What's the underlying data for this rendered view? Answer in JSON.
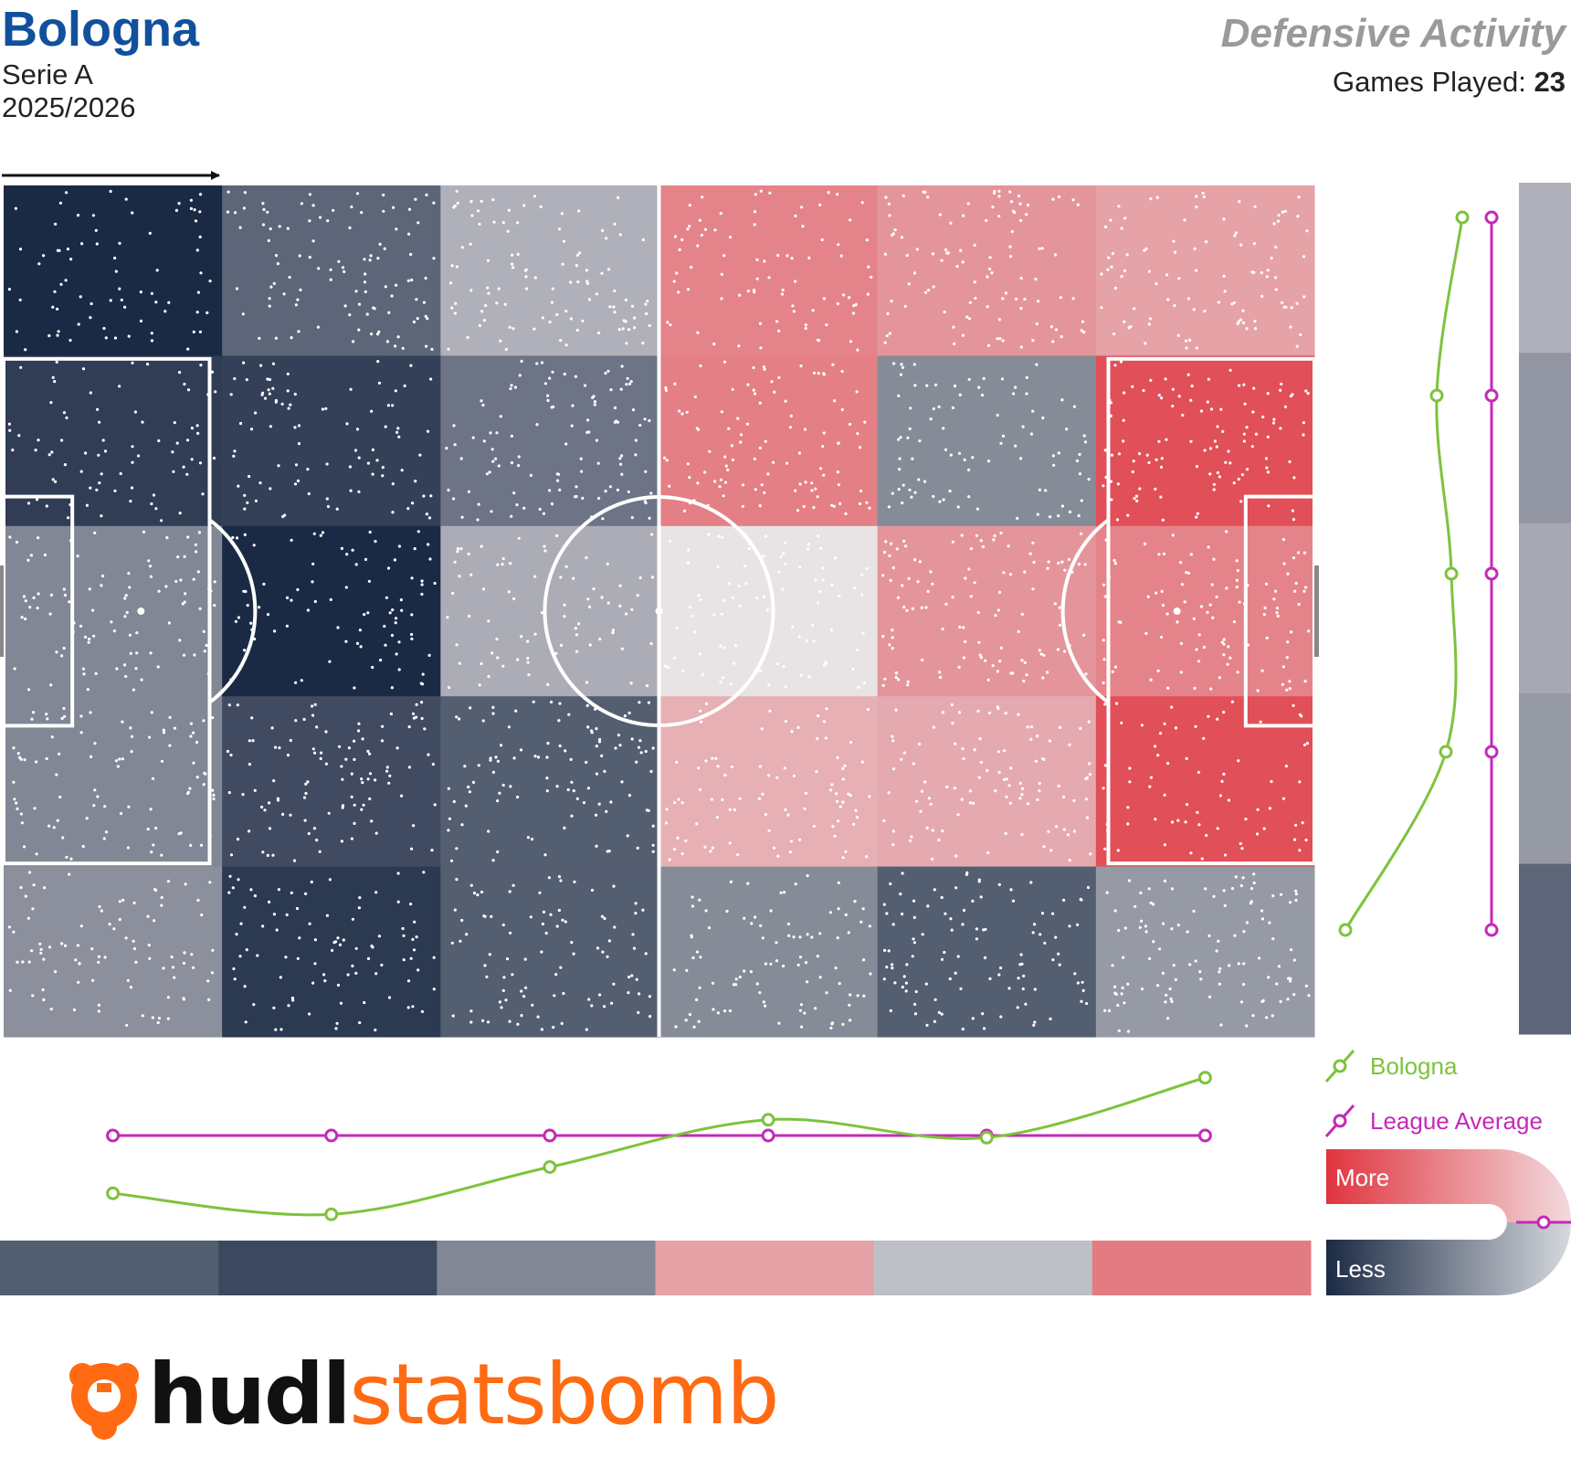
{
  "header": {
    "team": "Bologna",
    "competition": "Serie A",
    "season": "2025/2026",
    "report_title": "Defensive Activity",
    "games_label": "Games Played:",
    "games_value": "23"
  },
  "colors": {
    "team_line": "#7dc33c",
    "league_line": "#c42ab8",
    "more": "#e0353f",
    "less": "#1b2a44",
    "neutral": "#e8e4e6",
    "title_blue": "#12509d",
    "logo_orange": "#ff6a13"
  },
  "chart_data": {
    "type": "heatmap",
    "grid": {
      "columns": 6,
      "rows": 5
    },
    "attack_direction": "left-to-right",
    "scale": {
      "min": -1,
      "max": 1,
      "label_more": "More",
      "label_less": "Less"
    },
    "cells": [
      [
        -1.0,
        -0.68,
        -0.28,
        0.55,
        0.45,
        0.38
      ],
      [
        -0.9,
        -0.88,
        -0.6,
        0.58,
        -0.48,
        0.85
      ],
      [
        -0.5,
        -1.0,
        -0.3,
        0.0,
        0.45,
        0.55
      ],
      [
        -0.5,
        -0.82,
        -0.72,
        0.3,
        0.33,
        0.85
      ],
      [
        -0.45,
        -0.92,
        -0.72,
        -0.48,
        -0.72,
        -0.4
      ]
    ],
    "column_profile": {
      "team": [
        -0.55,
        -0.75,
        -0.3,
        0.15,
        -0.02,
        0.55
      ],
      "league": [
        0,
        0,
        0,
        0,
        0,
        0
      ],
      "band": [
        -0.72,
        -0.84,
        -0.5,
        0.38,
        -0.2,
        0.6
      ]
    },
    "row_profile": {
      "team": [
        -0.32,
        -0.6,
        -0.44,
        -0.5,
        -1.6
      ],
      "league": [
        0,
        0,
        0,
        0,
        0
      ],
      "band": [
        -0.28,
        -0.42,
        -0.32,
        -0.4,
        -0.68
      ]
    },
    "legend": [
      {
        "name": "Bologna",
        "color": "#7dc33c"
      },
      {
        "name": "League Average",
        "color": "#c42ab8"
      }
    ]
  },
  "branding": {
    "logo_part1": "hudl",
    "logo_part2": "statsbomb"
  }
}
